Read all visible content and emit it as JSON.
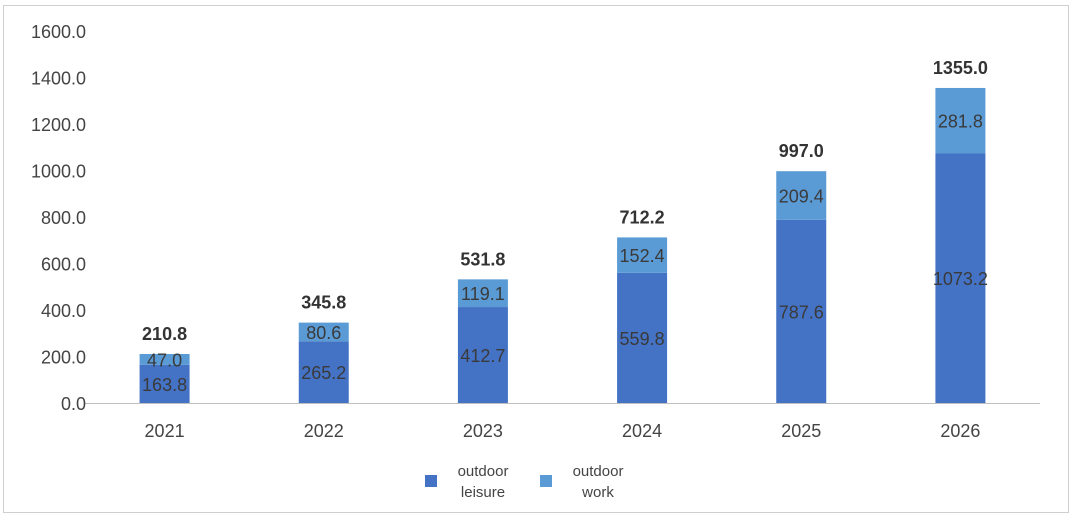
{
  "chart_data": {
    "type": "bar",
    "stacked": true,
    "categories": [
      "2021",
      "2022",
      "2023",
      "2024",
      "2025",
      "2026"
    ],
    "series": [
      {
        "name": "outdoor leisure",
        "legend_lines": [
          "outdoor",
          "leisure"
        ],
        "color": "#4472C4",
        "values": [
          163.8,
          265.2,
          412.7,
          559.8,
          787.6,
          1073.2
        ],
        "labels": [
          "163.8",
          "265.2",
          "412.7",
          "559.8",
          "787.6",
          "1073.2"
        ]
      },
      {
        "name": "outdoor work",
        "legend_lines": [
          "outdoor",
          "work"
        ],
        "color": "#5B9BD5",
        "values": [
          47.0,
          80.6,
          119.1,
          152.4,
          209.4,
          281.8
        ],
        "labels": [
          "47.0",
          "80.6",
          "119.1",
          "152.4",
          "209.4",
          "281.8"
        ]
      }
    ],
    "totals": [
      "210.8",
      "345.8",
      "531.8",
      "712.2",
      "997.0",
      "1355.0"
    ],
    "ylim": [
      0,
      1600
    ],
    "yticks": [
      "0.0",
      "200.0",
      "400.0",
      "600.0",
      "800.0",
      "1000.0",
      "1200.0",
      "1400.0",
      "1600.0"
    ],
    "grid": false,
    "legend_position": "bottom",
    "title": "",
    "xlabel": "",
    "ylabel": ""
  }
}
